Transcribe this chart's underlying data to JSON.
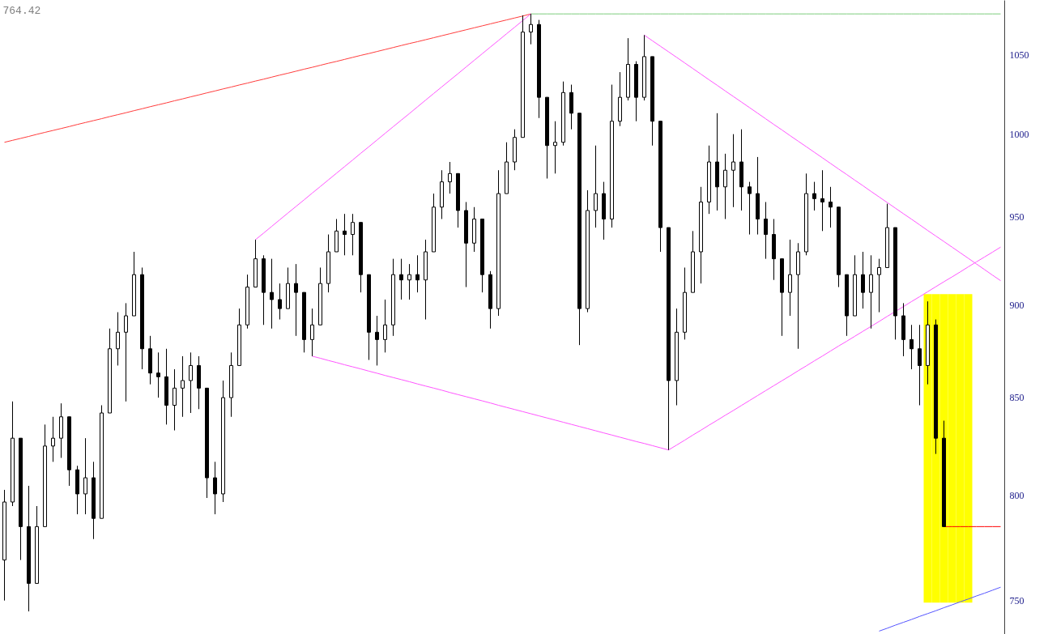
{
  "chart_data": {
    "type": "candlestick",
    "log": true,
    "tick_labels": "y",
    "color": "#000000",
    "categories": [
      null,
      null,
      null,
      null,
      null,
      null,
      null,
      null,
      null,
      null,
      null,
      null,
      null,
      null,
      null,
      null,
      null,
      null,
      null,
      null,
      null,
      null,
      null,
      null,
      null,
      null,
      null,
      null,
      null,
      null,
      null,
      null,
      null,
      null,
      null,
      null,
      null,
      null,
      null,
      null,
      null,
      null,
      null,
      null,
      null,
      null,
      null,
      null,
      null,
      null,
      null,
      null,
      null,
      null,
      null,
      null,
      null,
      null,
      null,
      null,
      null,
      null,
      null,
      null,
      null,
      null,
      null,
      null,
      null,
      null,
      null,
      null,
      null,
      null,
      null,
      null,
      null,
      null,
      null,
      null,
      null,
      null,
      null,
      null,
      null,
      null,
      null,
      null,
      null,
      null,
      null,
      null,
      null,
      null,
      null,
      null,
      null,
      null,
      null,
      null,
      null,
      null,
      null,
      null,
      null,
      null,
      null,
      null,
      null,
      null,
      null,
      null,
      null,
      null,
      null,
      null,
      null,
      null,
      null,
      null,
      null,
      null,
      null,
      null
    ],
    "ohlc": [
      [
        769,
        803,
        750,
        797
      ],
      [
        797,
        848,
        795,
        829
      ],
      [
        829,
        829,
        769,
        785
      ],
      [
        785,
        805,
        745,
        758
      ],
      [
        758,
        795,
        758,
        785
      ],
      [
        785,
        836,
        785,
        825
      ],
      [
        825,
        840,
        817,
        829
      ],
      [
        829,
        847,
        819,
        840
      ],
      [
        840,
        840,
        805,
        813
      ],
      [
        813,
        815,
        791,
        801
      ],
      [
        801,
        829,
        791,
        809
      ],
      [
        809,
        817,
        779,
        789
      ],
      [
        789,
        846,
        789,
        842
      ],
      [
        842,
        887,
        842,
        876
      ],
      [
        876,
        896,
        867,
        885
      ],
      [
        885,
        901,
        848,
        894
      ],
      [
        894,
        930,
        894,
        917
      ],
      [
        917,
        921,
        865,
        876
      ],
      [
        876,
        883,
        857,
        863
      ],
      [
        863,
        874,
        850,
        861
      ],
      [
        861,
        876,
        836,
        846
      ],
      [
        846,
        865,
        833,
        855
      ],
      [
        855,
        872,
        840,
        859
      ],
      [
        859,
        874,
        842,
        867
      ],
      [
        867,
        872,
        844,
        855
      ],
      [
        855,
        855,
        799,
        809
      ],
      [
        809,
        817,
        791,
        801
      ],
      [
        801,
        859,
        797,
        850
      ],
      [
        850,
        874,
        840,
        867
      ],
      [
        867,
        898,
        867,
        889
      ],
      [
        889,
        917,
        887,
        910
      ],
      [
        910,
        937,
        910,
        926
      ],
      [
        926,
        928,
        889,
        907
      ],
      [
        907,
        926,
        887,
        903
      ],
      [
        903,
        912,
        892,
        898
      ],
      [
        898,
        921,
        898,
        912
      ],
      [
        912,
        923,
        883,
        907
      ],
      [
        907,
        907,
        874,
        881
      ],
      [
        881,
        898,
        872,
        889
      ],
      [
        889,
        921,
        889,
        912
      ],
      [
        912,
        940,
        907,
        930
      ],
      [
        930,
        949,
        930,
        942
      ],
      [
        942,
        952,
        928,
        940
      ],
      [
        940,
        952,
        928,
        947
      ],
      [
        947,
        947,
        907,
        917
      ],
      [
        917,
        917,
        870,
        885
      ],
      [
        885,
        894,
        867,
        881
      ],
      [
        881,
        903,
        874,
        889
      ],
      [
        889,
        926,
        883,
        917
      ],
      [
        917,
        926,
        903,
        914
      ],
      [
        914,
        923,
        903,
        917
      ],
      [
        917,
        928,
        907,
        914
      ],
      [
        914,
        937,
        892,
        930
      ],
      [
        930,
        964,
        930,
        956
      ],
      [
        956,
        978,
        949,
        971
      ],
      [
        971,
        983,
        964,
        976
      ],
      [
        976,
        976,
        944,
        954
      ],
      [
        954,
        959,
        910,
        935
      ],
      [
        935,
        956,
        930,
        949
      ],
      [
        949,
        949,
        907,
        917
      ],
      [
        917,
        919,
        887,
        898
      ],
      [
        898,
        978,
        894,
        964
      ],
      [
        964,
        995,
        964,
        983
      ],
      [
        983,
        1003,
        978,
        998
      ],
      [
        998,
        1076,
        998,
        1065
      ],
      [
        1065,
        1077,
        1057,
        1070
      ],
      [
        1070,
        1073,
        1010,
        1023
      ],
      [
        1023,
        1023,
        973,
        993
      ],
      [
        993,
        1008,
        976,
        995
      ],
      [
        995,
        1033,
        993,
        1026
      ],
      [
        1026,
        1031,
        1003,
        1013
      ],
      [
        1013,
        1013,
        878,
        898
      ],
      [
        898,
        966,
        896,
        954
      ],
      [
        954,
        993,
        944,
        964
      ],
      [
        964,
        971,
        937,
        949
      ],
      [
        949,
        1031,
        944,
        1008
      ],
      [
        1008,
        1039,
        1005,
        1023
      ],
      [
        1023,
        1061,
        1021,
        1044
      ],
      [
        1044,
        1046,
        1008,
        1023
      ],
      [
        1023,
        1063,
        1021,
        1049
      ],
      [
        1049,
        1049,
        993,
        1008
      ],
      [
        1008,
        1008,
        930,
        944
      ],
      [
        944,
        944,
        823,
        859
      ],
      [
        859,
        898,
        846,
        885
      ],
      [
        885,
        921,
        881,
        907
      ],
      [
        907,
        942,
        907,
        930
      ],
      [
        930,
        968,
        912,
        959
      ],
      [
        959,
        993,
        952,
        983
      ],
      [
        983,
        1013,
        954,
        968
      ],
      [
        968,
        988,
        949,
        978
      ],
      [
        978,
        1000,
        956,
        983
      ],
      [
        983,
        1003,
        954,
        968
      ],
      [
        968,
        971,
        940,
        964
      ],
      [
        964,
        986,
        940,
        949
      ],
      [
        949,
        959,
        926,
        940
      ],
      [
        940,
        949,
        914,
        926
      ],
      [
        926,
        926,
        883,
        907
      ],
      [
        907,
        937,
        894,
        917
      ],
      [
        917,
        935,
        876,
        930
      ],
      [
        930,
        976,
        928,
        964
      ],
      [
        964,
        971,
        954,
        961
      ],
      [
        961,
        978,
        942,
        959
      ],
      [
        959,
        968,
        944,
        956
      ],
      [
        956,
        956,
        910,
        917
      ],
      [
        917,
        917,
        883,
        894
      ],
      [
        894,
        928,
        894,
        917
      ],
      [
        917,
        930,
        898,
        907
      ],
      [
        907,
        928,
        887,
        917
      ],
      [
        917,
        926,
        896,
        921
      ],
      [
        921,
        958,
        921,
        944
      ],
      [
        944,
        944,
        881,
        894
      ],
      [
        894,
        901,
        872,
        881
      ],
      [
        881,
        889,
        865,
        876
      ],
      [
        876,
        889,
        846,
        867
      ],
      [
        867,
        902,
        857,
        889
      ],
      [
        889,
        892,
        821,
        829
      ],
      [
        829,
        838,
        785,
        785
      ],
      null,
      null,
      null,
      null,
      null,
      null,
      null
    ],
    "series": [
      {
        "type": "bar",
        "color": "#ffff00",
        "values": [
          null,
          null,
          null,
          null,
          null,
          null,
          null,
          null,
          null,
          null,
          null,
          null,
          null,
          null,
          null,
          null,
          null,
          null,
          null,
          null,
          null,
          null,
          null,
          null,
          null,
          null,
          null,
          null,
          null,
          null,
          null,
          null,
          null,
          null,
          null,
          null,
          null,
          null,
          null,
          null,
          null,
          null,
          null,
          null,
          null,
          null,
          null,
          null,
          null,
          null,
          null,
          null,
          null,
          null,
          null,
          null,
          null,
          null,
          null,
          null,
          null,
          null,
          null,
          null,
          null,
          null,
          null,
          null,
          null,
          null,
          null,
          null,
          null,
          null,
          null,
          null,
          null,
          null,
          null,
          null,
          null,
          null,
          null,
          null,
          null,
          null,
          null,
          null,
          null,
          null,
          null,
          null,
          null,
          null,
          null,
          null,
          null,
          null,
          null,
          null,
          null,
          null,
          null,
          null,
          null,
          null,
          null,
          null,
          null,
          null,
          null,
          null,
          null,
          null,
          157,
          157,
          157,
          157,
          157,
          157,
          null,
          null,
          null,
          null
        ],
        "base": [
          null,
          null,
          null,
          null,
          null,
          null,
          null,
          null,
          null,
          null,
          null,
          null,
          null,
          null,
          null,
          null,
          null,
          null,
          null,
          null,
          null,
          null,
          null,
          null,
          null,
          null,
          null,
          null,
          null,
          null,
          null,
          null,
          null,
          null,
          null,
          null,
          null,
          null,
          null,
          null,
          null,
          null,
          null,
          null,
          null,
          null,
          null,
          null,
          null,
          null,
          null,
          null,
          null,
          null,
          null,
          null,
          null,
          null,
          null,
          null,
          null,
          null,
          null,
          null,
          null,
          null,
          null,
          null,
          null,
          null,
          null,
          null,
          null,
          null,
          null,
          null,
          null,
          null,
          null,
          null,
          null,
          null,
          null,
          null,
          null,
          null,
          null,
          null,
          null,
          null,
          null,
          null,
          null,
          null,
          null,
          null,
          null,
          null,
          null,
          null,
          null,
          null,
          null,
          null,
          null,
          null,
          null,
          null,
          null,
          null,
          null,
          null,
          null,
          null,
          749,
          749,
          749,
          749,
          749,
          749,
          null,
          null,
          null,
          null
        ]
      },
      {
        "type": "line",
        "color": "#ff3c3c",
        "values": [
          995.0,
          996.2,
          997.4,
          998.6,
          999.9,
          1001.1,
          1002.3,
          1003.5,
          1004.7,
          1006.0,
          1007.2,
          1008.4,
          1009.6,
          1010.9,
          1012.1,
          1013.3,
          1014.6,
          1015.8,
          1017.1,
          1018.3,
          1019.5,
          1020.8,
          1022.0,
          1023.3,
          1024.5,
          1025.8,
          1027.0,
          1028.3,
          1029.5,
          1030.8,
          1032.0,
          1033.3,
          1034.5,
          1035.8,
          1037.1,
          1038.3,
          1039.6,
          1040.9,
          1042.1,
          1043.4,
          1044.7,
          1045.9,
          1047.2,
          1048.5,
          1049.8,
          1051.0,
          1052.3,
          1053.6,
          1054.9,
          1056.2,
          1057.5,
          1058.7,
          1060.0,
          1061.3,
          1062.6,
          1063.9,
          1065.2,
          1066.5,
          1067.8,
          1069.1,
          1070.4,
          1071.7,
          1073.0,
          1074.3,
          1075.6,
          1077.0,
          null,
          null,
          null,
          null,
          null,
          null,
          null,
          null,
          null,
          null,
          null,
          null,
          null,
          null,
          null,
          null,
          null,
          null,
          null,
          null,
          null,
          null,
          null,
          null,
          null,
          null,
          null,
          null,
          null,
          null,
          null,
          null,
          null,
          null,
          null,
          null,
          null,
          null,
          null,
          null,
          null,
          null,
          null,
          null,
          null,
          null,
          null,
          null,
          null,
          null,
          null,
          null,
          null,
          null,
          null,
          null,
          null,
          null
        ]
      },
      {
        "type": "line",
        "color": "#ff55ff",
        "values": [
          null,
          null,
          null,
          null,
          null,
          null,
          null,
          null,
          null,
          null,
          null,
          null,
          null,
          null,
          null,
          null,
          null,
          null,
          null,
          null,
          null,
          null,
          null,
          null,
          null,
          null,
          null,
          null,
          null,
          null,
          null,
          937.0,
          940.8,
          944.7,
          948.6,
          952.5,
          956.4,
          960.3,
          964.3,
          968.2,
          972.2,
          976.2,
          980.2,
          984.2,
          988.3,
          992.3,
          996.4,
          1000.5,
          1004.6,
          1008.7,
          1012.8,
          1017.0,
          1021.2,
          1025.4,
          1029.6,
          1033.8,
          1038.0,
          1042.3,
          1046.6,
          1050.9,
          1055.2,
          1059.5,
          1063.9,
          1068.2,
          1072.6,
          1077.0,
          null,
          null,
          null,
          null,
          null,
          null,
          null,
          null,
          null,
          null,
          null,
          null,
          null,
          null,
          null,
          null,
          null,
          null,
          null,
          null,
          null,
          null,
          null,
          null,
          null,
          null,
          null,
          null,
          null,
          null,
          null,
          null,
          null,
          null,
          null,
          null,
          null,
          null,
          null,
          null,
          null,
          null,
          null,
          null,
          null,
          null,
          null,
          null,
          null,
          null,
          null,
          null,
          null,
          null,
          null,
          null,
          null,
          null
        ]
      },
      {
        "type": "line",
        "color": "#ff55ff",
        "values": [
          null,
          null,
          null,
          null,
          null,
          null,
          null,
          null,
          null,
          null,
          null,
          null,
          null,
          null,
          null,
          null,
          null,
          null,
          null,
          null,
          null,
          null,
          null,
          null,
          null,
          null,
          null,
          null,
          null,
          null,
          null,
          null,
          null,
          null,
          null,
          null,
          null,
          null,
          872.0,
          870.9,
          869.7,
          868.6,
          867.4,
          866.3,
          865.2,
          864.0,
          862.9,
          861.7,
          860.6,
          859.5,
          858.4,
          857.2,
          856.1,
          855.0,
          853.9,
          852.7,
          851.6,
          850.5,
          849.4,
          848.3,
          847.2,
          846.0,
          844.9,
          843.8,
          842.7,
          841.6,
          840.5,
          839.4,
          838.3,
          837.2,
          836.1,
          835.0,
          833.9,
          832.8,
          831.7,
          830.6,
          829.5,
          828.4,
          827.3,
          826.3,
          825.2,
          824.1,
          823.0,
          null,
          null,
          null,
          null,
          null,
          null,
          null,
          null,
          null,
          null,
          null,
          null,
          null,
          null,
          null,
          null,
          null,
          null,
          null,
          null,
          null,
          null,
          null,
          null,
          null,
          null,
          null,
          null,
          null,
          null,
          null,
          null,
          null,
          null,
          null,
          null,
          null,
          null,
          null,
          null,
          null
        ]
      },
      {
        "type": "line",
        "color": "#ff55ff",
        "values": [
          null,
          null,
          null,
          null,
          null,
          null,
          null,
          null,
          null,
          null,
          null,
          null,
          null,
          null,
          null,
          null,
          null,
          null,
          null,
          null,
          null,
          null,
          null,
          null,
          null,
          null,
          null,
          null,
          null,
          null,
          null,
          null,
          null,
          null,
          null,
          null,
          null,
          null,
          null,
          null,
          null,
          null,
          null,
          null,
          null,
          null,
          null,
          null,
          null,
          null,
          null,
          null,
          null,
          null,
          null,
          null,
          null,
          null,
          null,
          null,
          null,
          null,
          null,
          null,
          null,
          null,
          null,
          null,
          null,
          null,
          null,
          null,
          null,
          null,
          null,
          null,
          null,
          null,
          null,
          null,
          null,
          null,
          823.0,
          825.5,
          828.0,
          830.6,
          833.1,
          835.7,
          838.2,
          840.8,
          843.3,
          845.9,
          848.5,
          851.1,
          853.7,
          856.3,
          858.9,
          861.5,
          864.2,
          866.8,
          869.5,
          872.1,
          874.8,
          877.5,
          880.1,
          882.8,
          885.5,
          888.2,
          890.9,
          893.7,
          896.4,
          899.1,
          901.9,
          904.6,
          907.4,
          910.2,
          913.0,
          915.7,
          918.5,
          921.4,
          924.2,
          927.0,
          929.8,
          932.7
        ]
      },
      {
        "type": "line",
        "color": "#ff55ff",
        "values": [
          null,
          null,
          null,
          null,
          null,
          null,
          null,
          null,
          null,
          null,
          null,
          null,
          null,
          null,
          null,
          null,
          null,
          null,
          null,
          null,
          null,
          null,
          null,
          null,
          null,
          null,
          null,
          null,
          null,
          null,
          null,
          null,
          null,
          null,
          null,
          null,
          null,
          null,
          null,
          null,
          null,
          null,
          null,
          null,
          null,
          null,
          null,
          null,
          null,
          null,
          null,
          null,
          null,
          null,
          null,
          null,
          null,
          null,
          null,
          null,
          null,
          null,
          null,
          null,
          null,
          null,
          null,
          null,
          null,
          null,
          null,
          null,
          null,
          null,
          null,
          null,
          null,
          null,
          null,
          1063.0,
          1059.3,
          1055.7,
          1052.1,
          1048.5,
          1044.9,
          1041.3,
          1037.7,
          1034.1,
          1030.6,
          1027.0,
          1023.5,
          1020.0,
          1016.5,
          1013.0,
          1009.5,
          1006.0,
          1002.6,
          999.1,
          995.7,
          992.3,
          988.9,
          985.5,
          982.1,
          978.7,
          975.4,
          972.0,
          968.7,
          965.3,
          962.0,
          958.7,
          955.4,
          952.1,
          948.9,
          945.6,
          942.3,
          939.1,
          935.9,
          932.7,
          929.5,
          926.3,
          923.1,
          919.9,
          916.7,
          913.6
        ]
      },
      {
        "type": "line",
        "color": "#7ccc7c",
        "values": [
          null,
          null,
          null,
          null,
          null,
          null,
          null,
          null,
          null,
          null,
          null,
          null,
          null,
          null,
          null,
          null,
          null,
          null,
          null,
          null,
          null,
          null,
          null,
          null,
          null,
          null,
          null,
          null,
          null,
          null,
          null,
          null,
          null,
          null,
          null,
          null,
          null,
          null,
          null,
          null,
          null,
          null,
          null,
          null,
          null,
          null,
          null,
          null,
          null,
          null,
          null,
          null,
          null,
          null,
          null,
          null,
          null,
          null,
          null,
          null,
          null,
          null,
          null,
          null,
          null,
          1077,
          1077,
          1077,
          1077,
          1077,
          1077,
          1077,
          1077,
          1077,
          1077,
          1077,
          1077,
          1077,
          1077,
          1077,
          1077,
          1077,
          1077,
          1077,
          1077,
          1077,
          1077,
          1077,
          1077,
          1077,
          1077,
          1077,
          1077,
          1077,
          1077,
          1077,
          1077,
          1077,
          1077,
          1077,
          1077,
          1077,
          1077,
          1077,
          1077,
          1077,
          1077,
          1077,
          1077,
          1077,
          1077,
          1077,
          1077,
          1077,
          1077,
          1077,
          1077,
          1077,
          1077,
          1077,
          1077,
          1077,
          1077,
          1077
        ]
      },
      {
        "type": "line",
        "color": "#5555ff",
        "values": [
          null,
          null,
          null,
          null,
          null,
          null,
          null,
          null,
          null,
          null,
          null,
          null,
          null,
          null,
          null,
          null,
          null,
          null,
          null,
          null,
          null,
          null,
          null,
          null,
          null,
          null,
          null,
          null,
          null,
          null,
          null,
          null,
          null,
          null,
          null,
          null,
          null,
          null,
          null,
          null,
          null,
          null,
          null,
          null,
          null,
          null,
          null,
          null,
          null,
          null,
          null,
          null,
          null,
          null,
          null,
          null,
          null,
          null,
          null,
          null,
          null,
          null,
          null,
          null,
          null,
          null,
          null,
          null,
          null,
          null,
          null,
          null,
          null,
          null,
          null,
          null,
          null,
          null,
          null,
          null,
          null,
          null,
          null,
          null,
          null,
          null,
          null,
          null,
          null,
          null,
          null,
          null,
          null,
          null,
          null,
          null,
          null,
          null,
          null,
          null,
          null,
          null,
          null,
          null,
          null,
          null,
          null,
          null,
          736.0,
          737.3,
          738.7,
          740.0,
          741.3,
          742.7,
          744.0,
          745.3,
          746.7,
          748.0,
          749.4,
          750.7,
          752.1,
          753.4,
          754.8,
          756.2
        ]
      },
      {
        "type": "line",
        "color": "#ff0000",
        "values": [
          null,
          null,
          null,
          null,
          null,
          null,
          null,
          null,
          null,
          null,
          null,
          null,
          null,
          null,
          null,
          null,
          null,
          null,
          null,
          null,
          null,
          null,
          null,
          null,
          null,
          null,
          null,
          null,
          null,
          null,
          null,
          null,
          null,
          null,
          null,
          null,
          null,
          null,
          null,
          null,
          null,
          null,
          null,
          null,
          null,
          null,
          null,
          null,
          null,
          null,
          null,
          null,
          null,
          null,
          null,
          null,
          null,
          null,
          null,
          null,
          null,
          null,
          null,
          null,
          null,
          null,
          null,
          null,
          null,
          null,
          null,
          null,
          null,
          null,
          null,
          null,
          null,
          null,
          null,
          null,
          null,
          null,
          null,
          null,
          null,
          null,
          null,
          null,
          null,
          null,
          null,
          null,
          null,
          null,
          null,
          null,
          null,
          null,
          null,
          null,
          null,
          null,
          null,
          null,
          null,
          null,
          null,
          null,
          null,
          null,
          null,
          null,
          null,
          null,
          null,
          null,
          785,
          785,
          785,
          785,
          785,
          785,
          785,
          785
        ]
      }
    ],
    "ylim": [
      734.5,
      1086
    ],
    "yticks": [
      750,
      800,
      850,
      900,
      950,
      1000,
      1050
    ],
    "annotations": [
      "764.42"
    ]
  }
}
